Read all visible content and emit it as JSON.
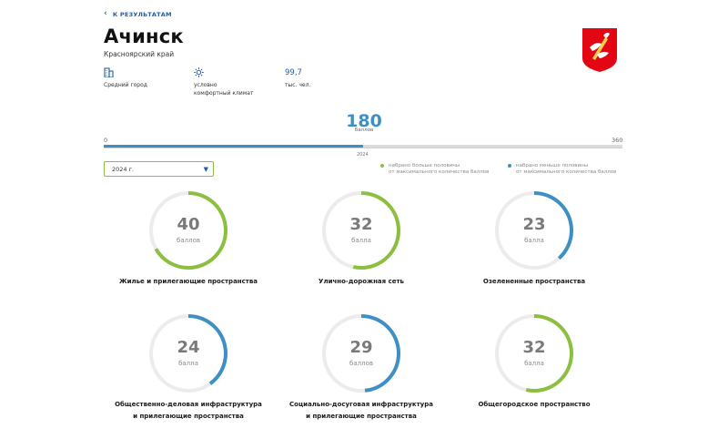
{
  "nav": {
    "back_label": "К РЕЗУЛЬТАТАМ"
  },
  "city": {
    "name": "Ачинск",
    "region": "Красноярский край"
  },
  "stats": {
    "city_type": "Средний город",
    "climate_line1": "условно",
    "climate_line2": "комфортный климат",
    "population_value": "99,7",
    "population_unit": "тыс. чел."
  },
  "index": {
    "total": "180",
    "total_unit": "баллов",
    "max": 360,
    "min_label": "0",
    "max_label": "360",
    "year_mark": "2024"
  },
  "year_select": {
    "value": "2024 г."
  },
  "legend": {
    "above": {
      "line1": "набрано больше половины",
      "line2": "от максимального количества баллов",
      "color": "#8cbf3f"
    },
    "below": {
      "line1": "набрано меньше половины",
      "line2": "от максимального количества баллов",
      "color": "#3e8fc4"
    }
  },
  "colors": {
    "accent_blue": "#3e8fc4",
    "accent_green": "#8cbf3f",
    "emblem_red": "#e30613"
  },
  "categories": [
    {
      "score": 40,
      "unit": "баллов",
      "max": 60,
      "color": "#8cbf3f",
      "title_line1": "Жилье и прилегающие пространства",
      "title_line2": ""
    },
    {
      "score": 32,
      "unit": "балла",
      "max": 60,
      "color": "#8cbf3f",
      "title_line1": "Улично-дорожная сеть",
      "title_line2": ""
    },
    {
      "score": 23,
      "unit": "балла",
      "max": 60,
      "color": "#3e8fc4",
      "title_line1": "Озелененные пространства",
      "title_line2": ""
    },
    {
      "score": 24,
      "unit": "балла",
      "max": 60,
      "color": "#3e8fc4",
      "title_line1": "Общественно-деловая инфраструктура",
      "title_line2": "и прилегающие пространства"
    },
    {
      "score": 29,
      "unit": "баллов",
      "max": 60,
      "color": "#3e8fc4",
      "title_line1": "Социально-досуговая инфраструктура",
      "title_line2": "и прилегающие пространства"
    },
    {
      "score": 32,
      "unit": "балла",
      "max": 60,
      "color": "#8cbf3f",
      "title_line1": "Общегородское пространство",
      "title_line2": ""
    }
  ]
}
